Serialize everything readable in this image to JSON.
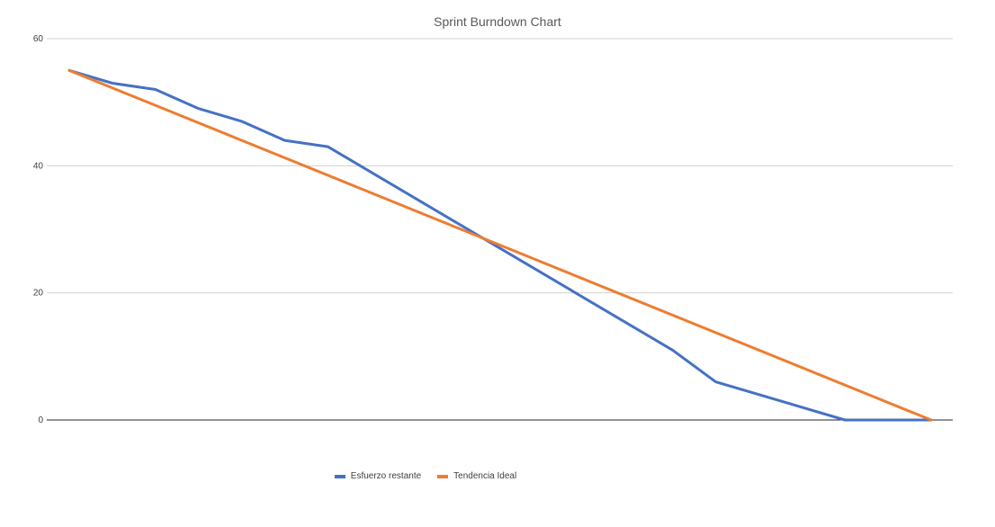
{
  "chart_data": {
    "type": "line",
    "title": "Sprint Burndown Chart",
    "xlabel": "",
    "ylabel": "",
    "ylim": [
      0,
      60
    ],
    "yticks": [
      0,
      20,
      40,
      60
    ],
    "grid": true,
    "legend_position": "bottom",
    "x": [
      1,
      2,
      3,
      4,
      5,
      6,
      7,
      8,
      9,
      10,
      11,
      12,
      13,
      14,
      15,
      16,
      17,
      18,
      19,
      20,
      21
    ],
    "series": [
      {
        "name": "Esfuerzo restante",
        "color": "#4472c4",
        "values": [
          55,
          53,
          52,
          49,
          47,
          44,
          43,
          null,
          null,
          null,
          null,
          null,
          null,
          null,
          11,
          6,
          null,
          null,
          0,
          null,
          0
        ]
      },
      {
        "name": "Tendencia Ideal",
        "color": "#ed7d31",
        "values": [
          55,
          null,
          null,
          null,
          null,
          null,
          null,
          null,
          null,
          null,
          null,
          null,
          null,
          null,
          null,
          null,
          null,
          null,
          null,
          null,
          0
        ]
      }
    ]
  }
}
